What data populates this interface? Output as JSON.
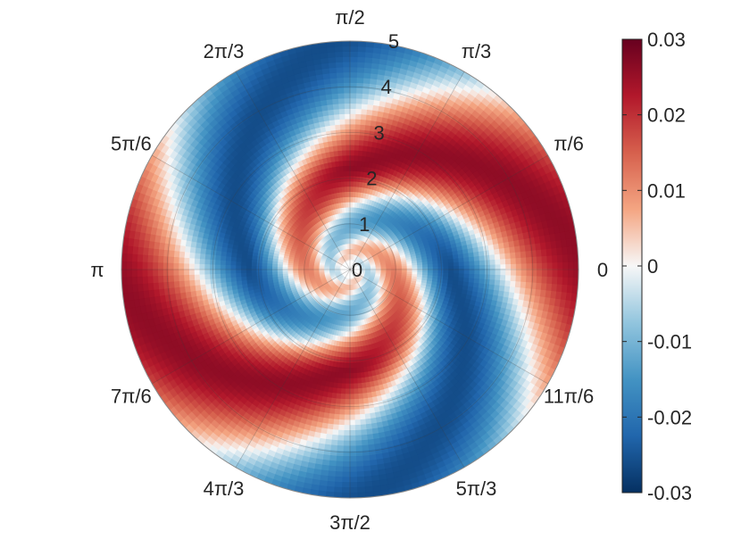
{
  "chart_data": {
    "type": "heatmap",
    "coordinate_system": "polar",
    "title": "",
    "grid": true,
    "angular_ticks": [
      "0",
      "π/6",
      "π/3",
      "π/2",
      "2π/3",
      "5π/6",
      "π",
      "7π/6",
      "4π/3",
      "3π/2",
      "5π/3",
      "11π/6"
    ],
    "radial_ticks": [
      "0",
      "1",
      "2",
      "3",
      "4",
      "5"
    ],
    "rlim": [
      0,
      5
    ],
    "pattern": "two-arm logarithmic spiral, amplitude ≈ 0.025 at the outer edge",
    "colorbar": {
      "location": "right",
      "colormap": "blue-white-red (diverging)",
      "clim": [
        -0.03,
        0.03
      ],
      "ticks": [
        "0.03",
        "0.02",
        "0.01",
        "0",
        "-0.01",
        "-0.02",
        "-0.03"
      ],
      "colors": [
        "#053061",
        "#2166ac",
        "#4393c3",
        "#92c5de",
        "#f7f7f7",
        "#f4a582",
        "#d6604d",
        "#b2182b",
        "#67001f"
      ]
    }
  }
}
